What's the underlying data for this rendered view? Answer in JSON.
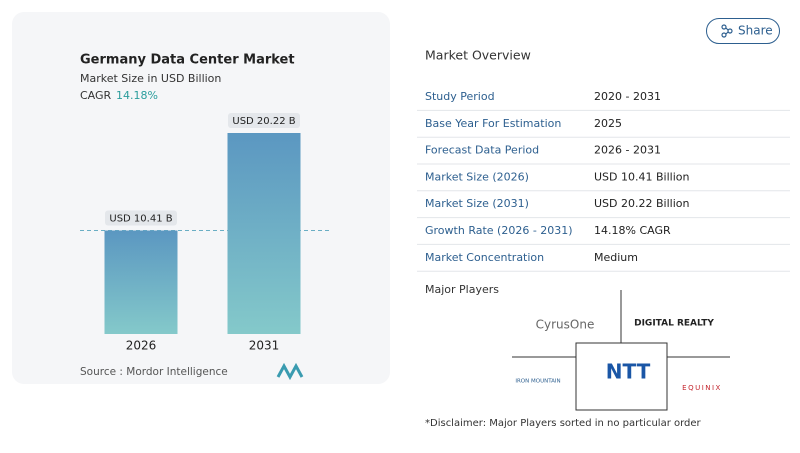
{
  "chart_data": {
    "type": "bar",
    "title": "Germany Data Center Market",
    "subtitle": "Market Size in USD Billion",
    "cagr_label": "CAGR",
    "cagr_value": "14.18%",
    "categories": [
      "2026",
      "2031"
    ],
    "values": [
      10.41,
      20.22
    ],
    "value_labels": [
      "USD 10.41 B",
      "USD 20.22 B"
    ],
    "gradient": [
      "#5b97c1",
      "#84c9ca"
    ],
    "source": "Source :  Mordor Intelligence"
  },
  "share": "Share",
  "overview": {
    "title": "Market Overview",
    "rows": [
      [
        "Study Period",
        "2020 - 2031"
      ],
      [
        "Base Year For Estimation",
        "2025"
      ],
      [
        "Forecast Data Period",
        "2026 - 2031"
      ],
      [
        "Market Size (2026)",
        "USD 10.41 Billion"
      ],
      [
        "Market Size (2031)",
        "USD 20.22 Billion"
      ],
      [
        "Growth Rate (2026 - 2031)",
        "14.18% CAGR"
      ],
      [
        "Market Concentration",
        "Medium"
      ]
    ]
  },
  "major_players": {
    "title": "Major Players",
    "logos": [
      "CyrusOne",
      "DIGITAL REALTY",
      "NTT",
      "IRON MOUNTAIN",
      "EQUINIX"
    ]
  },
  "disclaimer": "*Disclaimer: Major Players sorted in no particular order"
}
